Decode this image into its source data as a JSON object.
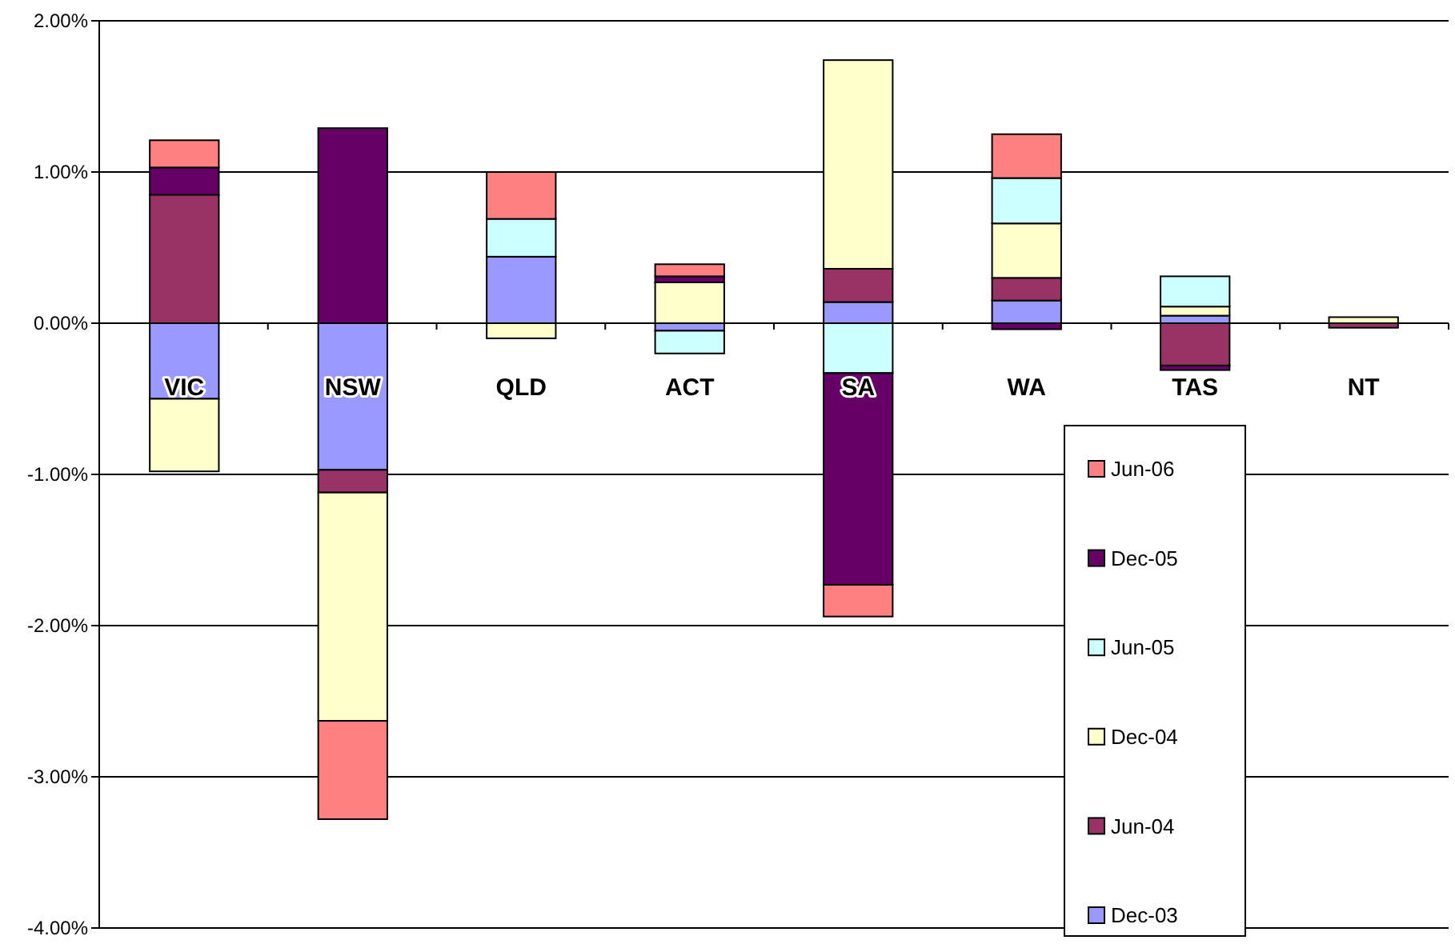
{
  "chart_data": {
    "type": "bar",
    "stacked": true,
    "categories": [
      "VIC",
      "NSW",
      "QLD",
      "ACT",
      "SA",
      "WA",
      "TAS",
      "NT"
    ],
    "series": [
      {
        "name": "Dec-03",
        "color": "#9999ff",
        "values": [
          -0.5,
          -0.97,
          0.44,
          -0.05,
          0.14,
          0.15,
          0.05,
          0
        ]
      },
      {
        "name": "Jun-04",
        "color": "#993366",
        "values": [
          0.85,
          -0.15,
          0,
          0,
          0.22,
          0.15,
          -0.28,
          -0.03
        ]
      },
      {
        "name": "Dec-04",
        "color": "#ffffcc",
        "values": [
          -0.48,
          -1.51,
          -0.1,
          0.27,
          1.38,
          0.36,
          0.06,
          0.04
        ]
      },
      {
        "name": "Jun-05",
        "color": "#ccffff",
        "values": [
          0,
          0,
          0.25,
          -0.15,
          -0.33,
          0.3,
          0.2,
          0
        ]
      },
      {
        "name": "Dec-05",
        "color": "#660066",
        "values": [
          0.18,
          1.29,
          0,
          0.04,
          -1.4,
          -0.04,
          -0.03,
          0
        ]
      },
      {
        "name": "Jun-06",
        "color": "#ff8080",
        "values": [
          0.18,
          -0.65,
          0.31,
          0.08,
          -0.21,
          0.29,
          0,
          0
        ]
      }
    ],
    "ylim": [
      -4,
      2
    ],
    "yticks": [
      {
        "value": -4,
        "label": "-4.00%"
      },
      {
        "value": -3,
        "label": "-3.00%"
      },
      {
        "value": -2,
        "label": "-2.00%"
      },
      {
        "value": -1,
        "label": "-1.00%"
      },
      {
        "value": 0,
        "label": "0.00%"
      },
      {
        "value": 1,
        "label": "1.00%"
      },
      {
        "value": 2,
        "label": "2.00%"
      }
    ],
    "grid": "y",
    "legend": "bottom right"
  }
}
